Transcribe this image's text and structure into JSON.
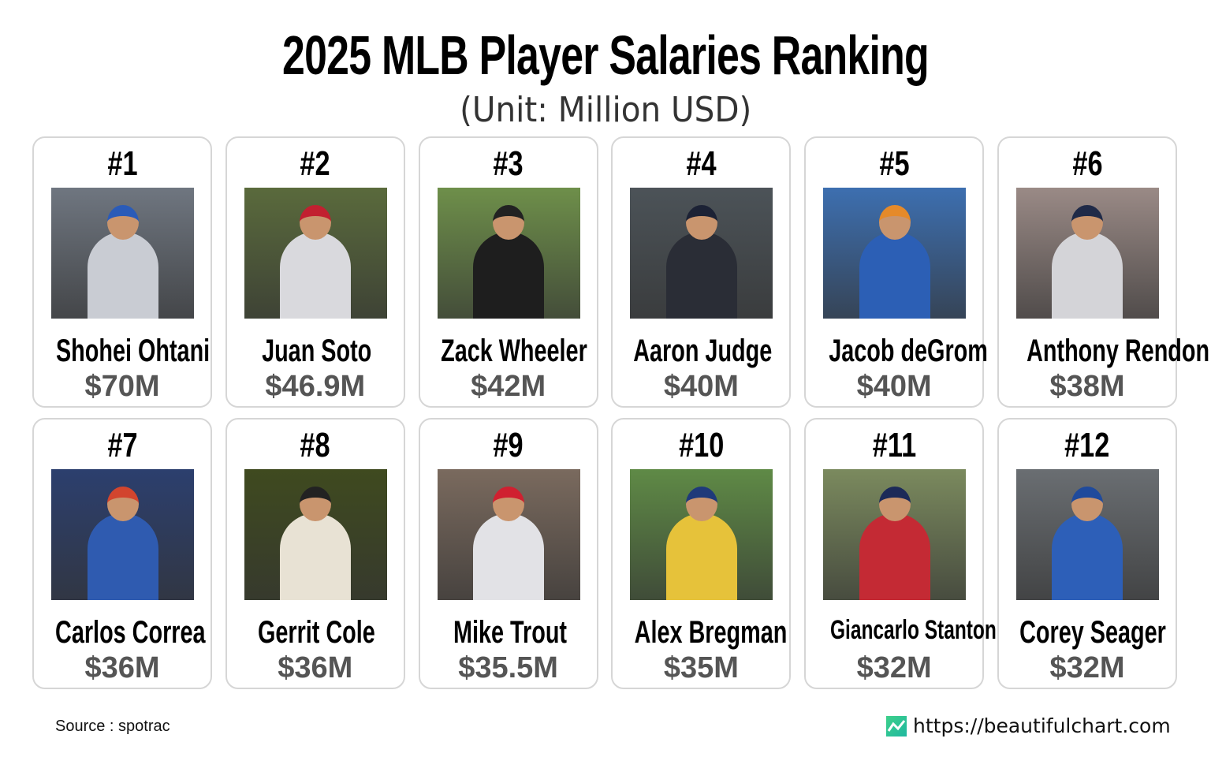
{
  "title": "2025 MLB Player Salaries Ranking",
  "subtitle": "(Unit: Million USD)",
  "footer": {
    "source": "Source : spotrac",
    "site": "https://beautifulchart.com",
    "logo_icon": "line-chart-icon"
  },
  "colors": {
    "card_border": "#d6d6d6",
    "salary_text": "#555555",
    "logo": "#2ec796"
  },
  "chart_data": {
    "type": "table",
    "title": "2025 MLB Player Salaries Ranking",
    "subtitle": "(Unit: Million USD)",
    "players": [
      {
        "rank": "#1",
        "name": "Shohei Ohtani",
        "salary": "$70M",
        "value": 70,
        "photo": {
          "bg": "#6f7680",
          "uniform": "#c9ccd3",
          "cap": "#2a5bb8"
        }
      },
      {
        "rank": "#2",
        "name": "Juan Soto",
        "salary": "$46.9M",
        "value": 46.9,
        "photo": {
          "bg": "#5a6a3c",
          "uniform": "#d9d9dd",
          "cap": "#c22030"
        }
      },
      {
        "rank": "#3",
        "name": "Zack Wheeler",
        "salary": "$42M",
        "value": 42,
        "photo": {
          "bg": "#6e8f4a",
          "uniform": "#1e1e1e",
          "cap": "#222222"
        }
      },
      {
        "rank": "#4",
        "name": "Aaron Judge",
        "salary": "$40M",
        "value": 40,
        "photo": {
          "bg": "#4c5358",
          "uniform": "#2a2d36",
          "cap": "#1c2235"
        }
      },
      {
        "rank": "#5",
        "name": "Jacob deGrom",
        "salary": "$40M",
        "value": 40,
        "photo": {
          "bg": "#3d6fb0",
          "uniform": "#2c5fb5",
          "cap": "#e58a2a"
        }
      },
      {
        "rank": "#6",
        "name": "Anthony Rendon",
        "salary": "$38M",
        "value": 38,
        "photo": {
          "bg": "#9a8a86",
          "uniform": "#d4d4d8",
          "cap": "#1f2a48"
        }
      },
      {
        "rank": "#7",
        "name": "Carlos Correa",
        "salary": "$36M",
        "value": 36,
        "photo": {
          "bg": "#2c3f6e",
          "uniform": "#2f5bb0",
          "cap": "#d2452e"
        }
      },
      {
        "rank": "#8",
        "name": "Gerrit Cole",
        "salary": "$36M",
        "value": 36,
        "photo": {
          "bg": "#3f4a1f",
          "uniform": "#e8e2d4",
          "cap": "#222222"
        }
      },
      {
        "rank": "#9",
        "name": "Mike Trout",
        "salary": "$35.5M",
        "value": 35.5,
        "photo": {
          "bg": "#7a6a5e",
          "uniform": "#e2e2e6",
          "cap": "#d02030"
        }
      },
      {
        "rank": "#10",
        "name": "Alex Bregman",
        "salary": "$35M",
        "value": 35,
        "photo": {
          "bg": "#5f8a46",
          "uniform": "#e6c23a",
          "cap": "#1f3a7a"
        }
      },
      {
        "rank": "#11",
        "name": "Giancarlo Stanton",
        "salary": "$32M",
        "value": 32,
        "photo": {
          "bg": "#7b8a5e",
          "uniform": "#c42a34",
          "cap": "#1c2a58"
        }
      },
      {
        "rank": "#12",
        "name": "Corey Seager",
        "salary": "$32M",
        "value": 32,
        "photo": {
          "bg": "#6a6e72",
          "uniform": "#2d5fb8",
          "cap": "#1f4a9c"
        }
      }
    ]
  }
}
